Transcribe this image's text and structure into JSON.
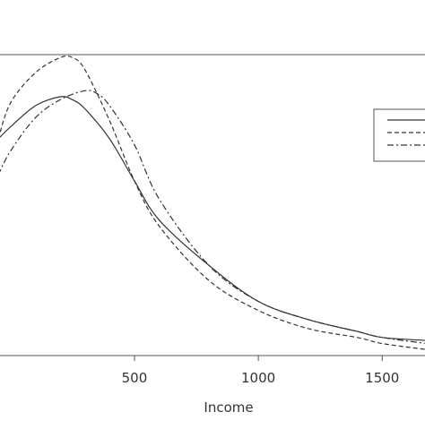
{
  "chart_data": {
    "type": "line",
    "xlabel": "Income",
    "ylabel": "",
    "title": "",
    "xlim": [
      -50,
      1680
    ],
    "ylim": [
      0,
      1.0
    ],
    "x_ticks": [
      500,
      1000,
      1500
    ],
    "x_tick_labels": [
      "500",
      "1000",
      "1500"
    ],
    "grid": false,
    "legend": {
      "placement": "top-right",
      "entries": [
        {
          "name": "",
          "line_style": "solid"
        },
        {
          "name": "",
          "line_style": "dashed"
        },
        {
          "name": "",
          "line_style": "dashdot"
        }
      ]
    },
    "series": [
      {
        "line_style": "solid",
        "x": [
          -50,
          0,
          100,
          200,
          250,
          300,
          400,
          500,
          600,
          800,
          1000,
          1200,
          1400,
          1500,
          1680
        ],
        "y": [
          0.72,
          0.76,
          0.83,
          0.86,
          0.85,
          0.82,
          0.72,
          0.58,
          0.45,
          0.3,
          0.18,
          0.12,
          0.08,
          0.06,
          0.05
        ]
      },
      {
        "line_style": "dashed",
        "x": [
          -50,
          0,
          100,
          200,
          250,
          300,
          400,
          500,
          600,
          800,
          1000,
          1200,
          1400,
          1500,
          1680
        ],
        "y": [
          0.72,
          0.84,
          0.94,
          0.99,
          0.99,
          0.95,
          0.78,
          0.58,
          0.43,
          0.25,
          0.15,
          0.09,
          0.06,
          0.04,
          0.02
        ]
      },
      {
        "line_style": "dashdot",
        "x": [
          -50,
          0,
          100,
          200,
          300,
          350,
          400,
          500,
          600,
          800,
          1000,
          1200,
          1400,
          1500,
          1680
        ],
        "y": [
          0.6,
          0.68,
          0.79,
          0.85,
          0.88,
          0.87,
          0.83,
          0.7,
          0.52,
          0.3,
          0.18,
          0.12,
          0.08,
          0.06,
          0.04
        ]
      }
    ]
  }
}
